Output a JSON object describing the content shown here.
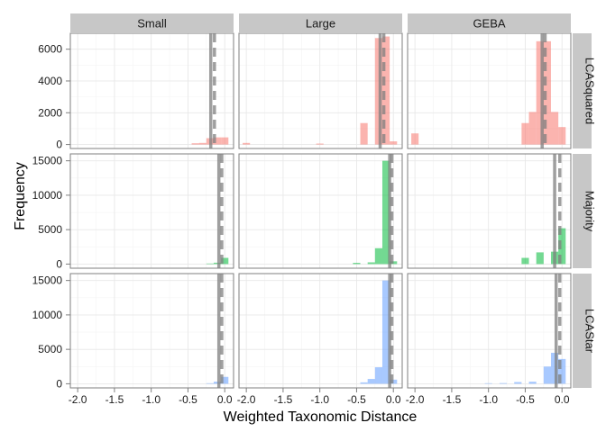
{
  "chart_data": {
    "type": "histogram",
    "xlabel": "Weighted Taxonomic Distance",
    "ylabel": "Frequency",
    "columns": [
      "Small",
      "Large",
      "GEBA"
    ],
    "rows": [
      "LCASquared",
      "Majority",
      "LCAStar"
    ],
    "x_ticks": [
      -2.0,
      -1.5,
      -1.0,
      -0.5,
      0.0
    ],
    "x_tick_labels": [
      "-2.0",
      "-1.5",
      "-1.0",
      "-0.5",
      "0.0"
    ],
    "xlim": [
      -2.1,
      0.12
    ],
    "bin_width": 0.1,
    "grid": true,
    "row_settings": [
      {
        "ylim": [
          -250,
          7000
        ],
        "y_ticks": [
          0,
          2000,
          4000,
          6000
        ],
        "y_tick_labels": [
          "0",
          "2000",
          "4000",
          "6000"
        ],
        "color": "#F8766D"
      },
      {
        "ylim": [
          -600,
          16000
        ],
        "y_ticks": [
          0,
          5000,
          10000,
          15000
        ],
        "y_tick_labels": [
          "0",
          "5000",
          "10000",
          "15000"
        ],
        "color": "#00BA38"
      },
      {
        "ylim": [
          -600,
          16000
        ],
        "y_ticks": [
          0,
          5000,
          10000,
          15000
        ],
        "y_tick_labels": [
          "0",
          "5000",
          "10000",
          "15000"
        ],
        "color": "#619CFF"
      }
    ],
    "panels": [
      {
        "row": "LCASquared",
        "column": "Small",
        "mean": -0.19,
        "median": -0.14,
        "bins": [
          [
            -0.4,
            80
          ],
          [
            -0.3,
            100
          ],
          [
            -0.2,
            400
          ],
          [
            -0.1,
            450
          ],
          [
            0.0,
            450
          ]
        ]
      },
      {
        "row": "LCASquared",
        "column": "Large",
        "mean": -0.18,
        "median": -0.13,
        "bins": [
          [
            -2.0,
            100
          ],
          [
            -1.0,
            60
          ],
          [
            -0.4,
            1350
          ],
          [
            -0.2,
            6700
          ],
          [
            -0.1,
            6800
          ],
          [
            0.0,
            200
          ]
        ]
      },
      {
        "row": "LCASquared",
        "column": "GEBA",
        "mean": -0.27,
        "median": -0.23,
        "bins": [
          [
            -2.0,
            700
          ],
          [
            -0.5,
            1350
          ],
          [
            -0.4,
            2050
          ],
          [
            -0.3,
            6500
          ],
          [
            -0.2,
            6500
          ],
          [
            -0.1,
            2050
          ],
          [
            0.0,
            1100
          ]
        ]
      },
      {
        "row": "Majority",
        "column": "Small",
        "mean": -0.08,
        "median": -0.04,
        "bins": [
          [
            -0.2,
            80
          ],
          [
            -0.1,
            200
          ],
          [
            0.0,
            900
          ]
        ]
      },
      {
        "row": "Majority",
        "column": "Large",
        "mean": -0.05,
        "median": -0.02,
        "bins": [
          [
            -0.5,
            180
          ],
          [
            -0.3,
            250
          ],
          [
            -0.2,
            2300
          ],
          [
            -0.1,
            15000
          ],
          [
            0.0,
            400
          ]
        ]
      },
      {
        "row": "Majority",
        "column": "GEBA",
        "mean": -0.1,
        "median": -0.03,
        "bins": [
          [
            -0.5,
            900
          ],
          [
            -0.3,
            1700
          ],
          [
            -0.1,
            1800
          ],
          [
            0.0,
            5200
          ]
        ]
      },
      {
        "row": "LCAStar",
        "column": "Small",
        "mean": -0.08,
        "median": -0.04,
        "bins": [
          [
            -0.2,
            80
          ],
          [
            -0.1,
            300
          ],
          [
            0.0,
            1000
          ]
        ]
      },
      {
        "row": "LCAStar",
        "column": "Large",
        "mean": -0.05,
        "median": -0.02,
        "bins": [
          [
            -0.4,
            200
          ],
          [
            -0.3,
            700
          ],
          [
            -0.2,
            2400
          ],
          [
            -0.1,
            15000
          ],
          [
            0.0,
            600
          ]
        ]
      },
      {
        "row": "LCAStar",
        "column": "GEBA",
        "mean": -0.08,
        "median": -0.03,
        "bins": [
          [
            -1.0,
            80
          ],
          [
            -0.8,
            100
          ],
          [
            -0.6,
            250
          ],
          [
            -0.4,
            300
          ],
          [
            -0.2,
            2500
          ],
          [
            -0.1,
            4500
          ],
          [
            0.0,
            3600
          ]
        ]
      }
    ]
  }
}
